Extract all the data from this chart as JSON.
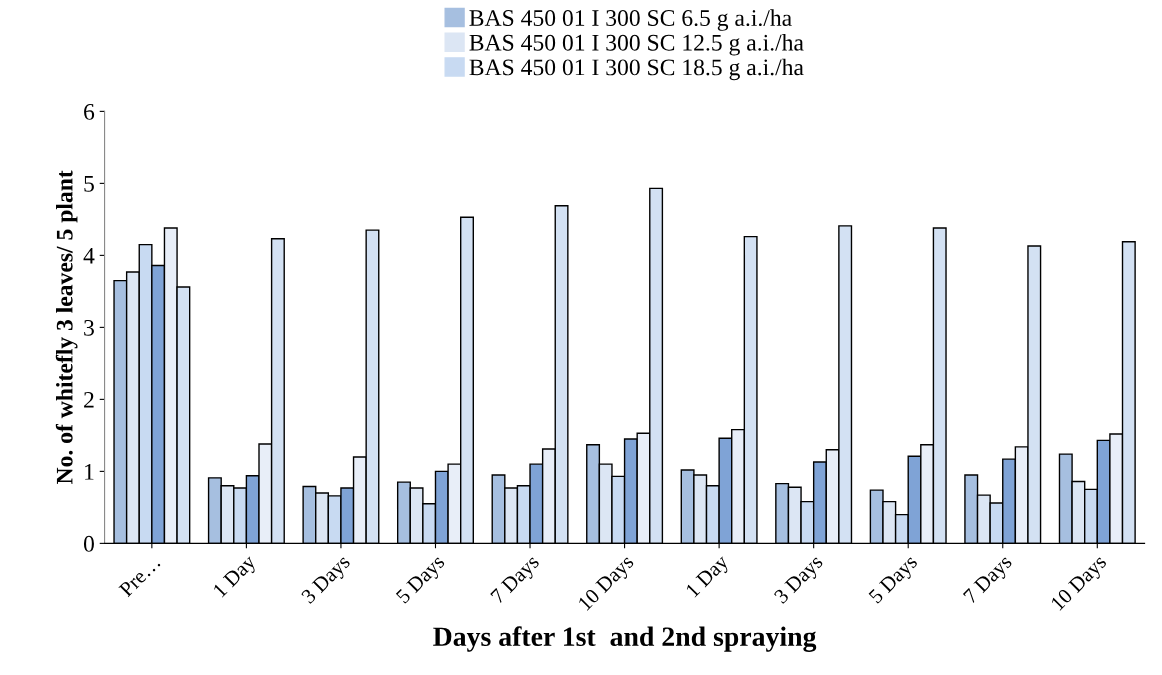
{
  "chart_data": {
    "type": "bar",
    "xlabel": "Days after 1st  and 2nd spraying",
    "ylabel": "No. of whitefly 3 leaves/ 5 plant",
    "categories": [
      "Pre…",
      "1 Day",
      "3 Days",
      "5 Days",
      "7 Days",
      "10 Days",
      "1 Day",
      "3 Days",
      "5 Days",
      "7 Days",
      "10 Days"
    ],
    "series": [
      {
        "name": "BAS 450 01 I 300 SC 6.5 g a.i./ha",
        "color": "#a6bfe0",
        "values": [
          3.65,
          0.91,
          0.79,
          0.85,
          0.95,
          1.37,
          1.02,
          0.83,
          0.74,
          0.95,
          1.24
        ]
      },
      {
        "name": "BAS 450 01 I 300 SC 12.5 g a.i./ha",
        "color": "#dce6f4",
        "values": [
          3.77,
          0.8,
          0.7,
          0.77,
          0.77,
          1.1,
          0.95,
          0.78,
          0.58,
          0.67,
          0.86
        ]
      },
      {
        "name": "BAS 450 01 I 300 SC 18.5 g a.i./ha",
        "color": "#c8daf2",
        "values": [
          4.15,
          0.77,
          0.66,
          0.55,
          0.8,
          0.93,
          0.8,
          0.58,
          0.4,
          0.56,
          0.75
        ]
      },
      {
        "color": "#7fa3d6",
        "values": [
          3.86,
          0.94,
          0.77,
          1.0,
          1.1,
          1.45,
          1.46,
          1.13,
          1.21,
          1.17,
          1.43
        ]
      },
      {
        "color": "#e8eef8",
        "values": [
          4.38,
          1.38,
          1.2,
          1.1,
          1.31,
          1.53,
          1.58,
          1.3,
          1.37,
          1.34,
          1.52
        ]
      },
      {
        "color": "#d3e1f3",
        "values": [
          3.56,
          4.23,
          4.35,
          4.53,
          4.69,
          4.93,
          4.26,
          4.41,
          4.38,
          4.13,
          4.19
        ]
      }
    ],
    "ylim": [
      0,
      6
    ],
    "yticks": [
      0,
      1,
      2,
      3,
      4,
      5,
      6
    ],
    "grid": false,
    "legend": "top"
  }
}
